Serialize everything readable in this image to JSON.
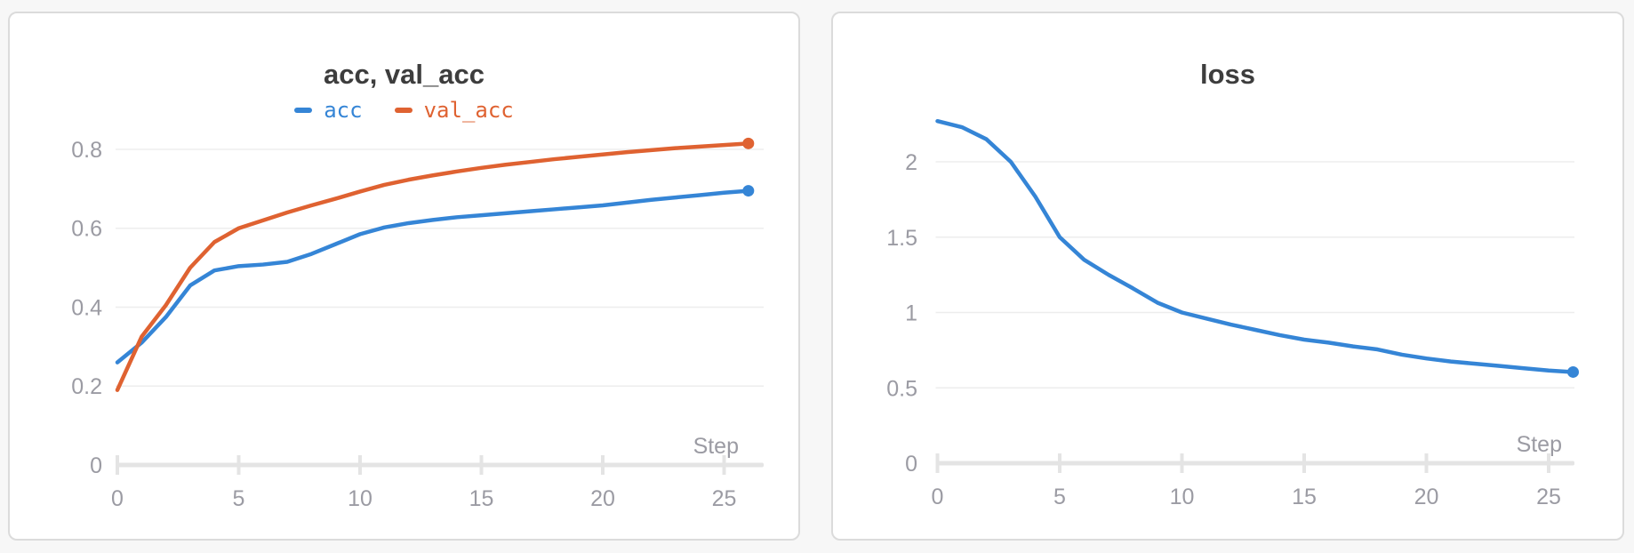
{
  "theme": {
    "page_background": "#f7f7f7",
    "panel_background": "#ffffff",
    "panel_border": "#dbdbdb",
    "grid_color": "#ededed",
    "axis_color": "#e4e4e4",
    "tick_label_color": "#9b9ba3",
    "title_color": "#3d3d3d",
    "series_blue": "#3585d6",
    "series_orange": "#df6231"
  },
  "chart_data": [
    {
      "type": "line",
      "title": "acc, val_acc",
      "xlabel": "Step",
      "x": [
        0,
        1,
        2,
        3,
        4,
        5,
        6,
        7,
        8,
        9,
        10,
        11,
        12,
        13,
        14,
        15,
        16,
        17,
        18,
        19,
        20,
        21,
        22,
        23,
        24,
        25,
        26
      ],
      "series": [
        {
          "name": "acc",
          "color": "#3585d6",
          "values": [
            0.26,
            0.31,
            0.375,
            0.455,
            0.493,
            0.504,
            0.508,
            0.515,
            0.535,
            0.56,
            0.585,
            0.602,
            0.613,
            0.621,
            0.628,
            0.633,
            0.638,
            0.643,
            0.648,
            0.653,
            0.658,
            0.665,
            0.672,
            0.678,
            0.684,
            0.69,
            0.695
          ]
        },
        {
          "name": "val_acc",
          "color": "#df6231",
          "values": [
            0.19,
            0.325,
            0.405,
            0.5,
            0.565,
            0.6,
            0.62,
            0.64,
            0.658,
            0.675,
            0.693,
            0.71,
            0.723,
            0.734,
            0.744,
            0.753,
            0.761,
            0.768,
            0.775,
            0.781,
            0.787,
            0.793,
            0.798,
            0.803,
            0.807,
            0.811,
            0.815
          ]
        }
      ],
      "x_ticks": [
        0,
        5,
        10,
        15,
        20,
        25
      ],
      "y_ticks": [
        0,
        0.2,
        0.4,
        0.6,
        0.8
      ],
      "xlim": [
        0,
        26.6
      ],
      "ylim": [
        0,
        0.9
      ],
      "grid": "horizontal-only",
      "legend_position": "top-center",
      "end_markers": true
    },
    {
      "type": "line",
      "title": "loss",
      "xlabel": "Step",
      "x": [
        0,
        1,
        2,
        3,
        4,
        5,
        6,
        7,
        8,
        9,
        10,
        11,
        12,
        13,
        14,
        15,
        16,
        17,
        18,
        19,
        20,
        21,
        22,
        23,
        24,
        25,
        26
      ],
      "series": [
        {
          "name": "loss",
          "color": "#3585d6",
          "values": [
            2.27,
            2.23,
            2.15,
            2.0,
            1.77,
            1.5,
            1.35,
            1.25,
            1.16,
            1.065,
            1.0,
            0.96,
            0.92,
            0.885,
            0.85,
            0.82,
            0.8,
            0.775,
            0.755,
            0.72,
            0.695,
            0.675,
            0.66,
            0.645,
            0.63,
            0.615,
            0.605
          ]
        }
      ],
      "x_ticks": [
        0,
        5,
        10,
        15,
        20,
        25
      ],
      "y_ticks": [
        0,
        0.5,
        1,
        1.5,
        2
      ],
      "xlim": [
        0,
        26.05
      ],
      "ylim": [
        0,
        2.4
      ],
      "grid": "horizontal-only",
      "legend_position": "none",
      "end_markers": true
    }
  ]
}
